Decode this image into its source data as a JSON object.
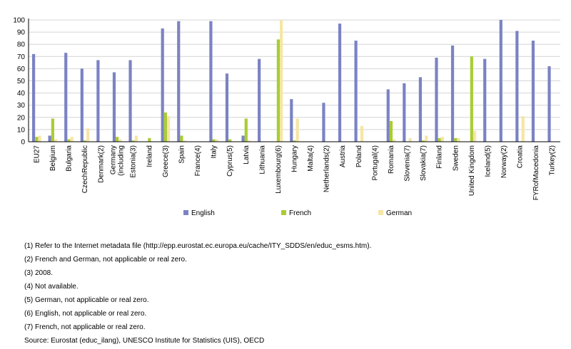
{
  "colors": {
    "English": "#7b83c4",
    "French": "#aacc33",
    "German": "#f5e6a4"
  },
  "chart_data": {
    "type": "bar",
    "title": "",
    "xlabel": "",
    "ylabel": "",
    "ylim": [
      0,
      100
    ],
    "yticks": [
      0,
      10,
      20,
      30,
      40,
      50,
      60,
      70,
      80,
      90,
      100
    ],
    "grid": true,
    "legend_position": "bottom",
    "categories": [
      "EU27",
      "Belgium",
      "Bulgaria",
      "CzechRepublic",
      "Denmark(2)",
      "Germany\n(including",
      "Estonia(3)",
      "Ireland",
      "Greece(3)",
      "Spain",
      "France(4)",
      "Italy",
      "Cyprus(5)",
      "Latvia",
      "Lithuania",
      "Luxembourg(6)",
      "Hungary",
      "Malta(4)",
      "Netherlands(2)",
      "Austria",
      "Poland",
      "Portugal(4)",
      "Romania",
      "Slovenia(7)",
      "Slovakia(7)",
      "Finland",
      "Sweden",
      "United Kingdom",
      "Iceland(5)",
      "Norway(2)",
      "Croatia",
      "FYRofMacedonia",
      "Turkey(2)"
    ],
    "series": [
      {
        "name": "English",
        "values": [
          72,
          5,
          73,
          60,
          67,
          57,
          67,
          0,
          93,
          99,
          0,
          99,
          56,
          5,
          68,
          0,
          35,
          0,
          32,
          97,
          83,
          0,
          43,
          48,
          53,
          69,
          79,
          0,
          68,
          100,
          91,
          83,
          62
        ]
      },
      {
        "name": "French",
        "values": [
          4,
          19,
          2,
          1,
          0,
          4,
          1,
          3,
          24,
          5,
          0,
          2,
          2,
          19,
          0,
          84,
          1,
          0,
          0,
          0,
          0,
          0,
          17,
          0,
          1,
          3,
          3,
          70,
          0,
          0,
          0,
          0,
          0
        ]
      },
      {
        "name": "German",
        "values": [
          5,
          2,
          4,
          11,
          0,
          2,
          5,
          0,
          21,
          1,
          0,
          2,
          0,
          1,
          0,
          100,
          19,
          0,
          0,
          0,
          13,
          0,
          2,
          3,
          5,
          4,
          3,
          9,
          0,
          0,
          21,
          0,
          0
        ]
      }
    ]
  },
  "notes": [
    "(1) Refer to the Internet metadata file (http://epp.eurostat.ec.europa.eu/cache/ITY_SDDS/en/educ_esms.htm).",
    "(2) French and German, not applicable or real zero.",
    "(3) 2008.",
    "(4) Not available.",
    "(5) German, not applicable or real zero.",
    "(6) English, not applicable or real zero.",
    "(7) French, not applicable or real zero.",
    "Source: Eurostat (educ_ilang), UNESCO Institute for Statistics (UIS), OECD"
  ]
}
